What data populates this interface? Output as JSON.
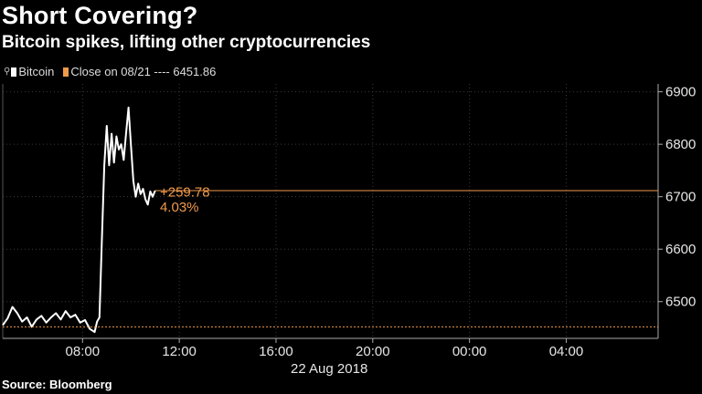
{
  "title": "Short Covering?",
  "subtitle": "Bitcoin spikes, lifting other cryptocurrencies",
  "source": "Source: Bloomberg",
  "legend": [
    {
      "label": "Bitcoin",
      "color": "#ffffff",
      "icon": "pin-icon"
    },
    {
      "label": "Close on 08/21 ---- 6451.86",
      "color": "#f19a4a"
    }
  ],
  "chart_data": {
    "type": "line",
    "title": "Short Covering?",
    "subtitle": "Bitcoin spikes, lifting other cryptocurrencies",
    "x_unit": "hours since 00:00 on 22 Aug 2018",
    "xlim": [
      4.7,
      31.8
    ],
    "ylim": [
      6430,
      6915
    ],
    "x_ticks": [
      {
        "x": 8,
        "label": "08:00"
      },
      {
        "x": 12,
        "label": "12:00"
      },
      {
        "x": 16,
        "label": "16:00"
      },
      {
        "x": 20,
        "label": "20:00"
      },
      {
        "x": 24,
        "label": "00:00"
      },
      {
        "x": 28,
        "label": "04:00"
      }
    ],
    "x_axis_date_label": "22 Aug 2018",
    "y_ticks": [
      6500,
      6600,
      6700,
      6800,
      6900
    ],
    "grid": true,
    "series": [
      {
        "name": "Bitcoin",
        "color": "#ffffff",
        "x": [
          4.7,
          4.9,
          5.1,
          5.3,
          5.5,
          5.7,
          5.9,
          6.1,
          6.3,
          6.5,
          6.7,
          6.9,
          7.1,
          7.3,
          7.5,
          7.7,
          7.9,
          8.1,
          8.3,
          8.5,
          8.6,
          8.7,
          8.8,
          8.9,
          9.0,
          9.1,
          9.2,
          9.3,
          9.4,
          9.5,
          9.6,
          9.7,
          9.8,
          9.9,
          10.0,
          10.1,
          10.2,
          10.3,
          10.4,
          10.5,
          10.6,
          10.7,
          10.8,
          10.9,
          11.0
        ],
        "y": [
          6455,
          6468,
          6490,
          6478,
          6462,
          6470,
          6452,
          6466,
          6473,
          6460,
          6470,
          6478,
          6466,
          6482,
          6470,
          6475,
          6460,
          6465,
          6448,
          6442,
          6462,
          6470,
          6620,
          6760,
          6835,
          6760,
          6820,
          6765,
          6815,
          6790,
          6800,
          6770,
          6820,
          6870,
          6800,
          6730,
          6700,
          6725,
          6705,
          6715,
          6695,
          6685,
          6710,
          6700,
          6711.64
        ]
      },
      {
        "name": "Close on 08/21",
        "color": "#f19a4a",
        "style": "dashed",
        "x": [
          4.7,
          31.8
        ],
        "y": [
          6451.86,
          6451.86
        ]
      }
    ],
    "reference_lines": [
      {
        "y": 6711.64,
        "color": "#f19a4a",
        "from_x": 11.0,
        "to_x": 31.8
      }
    ],
    "annotations": [
      {
        "text": "+259.78",
        "x": 11.2,
        "y": 6700
      },
      {
        "text": "4.03%",
        "x": 11.2,
        "y": 6672
      }
    ]
  }
}
